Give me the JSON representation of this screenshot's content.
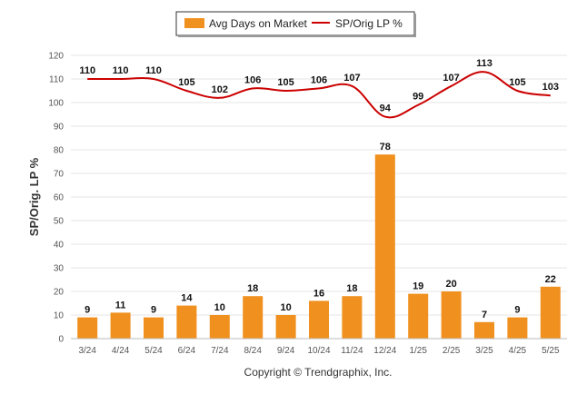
{
  "chart_data": {
    "type": "bar",
    "categories": [
      "3/24",
      "4/24",
      "5/24",
      "6/24",
      "7/24",
      "8/24",
      "9/24",
      "10/24",
      "11/24",
      "12/24",
      "1/25",
      "2/25",
      "3/25",
      "4/25",
      "5/25"
    ],
    "series": [
      {
        "name": "Avg Days on Market",
        "type": "bar",
        "color": "#F0901E",
        "values": [
          9,
          11,
          9,
          14,
          10,
          18,
          10,
          16,
          18,
          78,
          19,
          20,
          7,
          9,
          22
        ]
      },
      {
        "name": "SP/Orig LP %",
        "type": "line",
        "color": "#CC0000",
        "values": [
          110,
          110,
          110,
          105,
          102,
          106,
          105,
          106,
          107,
          94,
          99,
          107,
          113,
          105,
          103
        ]
      }
    ],
    "ylabel": "SP/Orig. LP %",
    "ylim": [
      0,
      120
    ],
    "yticks": [
      0,
      10,
      20,
      30,
      40,
      50,
      60,
      70,
      80,
      90,
      100,
      110,
      120
    ],
    "grid": true,
    "legend_position": "top-center",
    "credit": "Copyright © Trendgraphix, Inc."
  }
}
